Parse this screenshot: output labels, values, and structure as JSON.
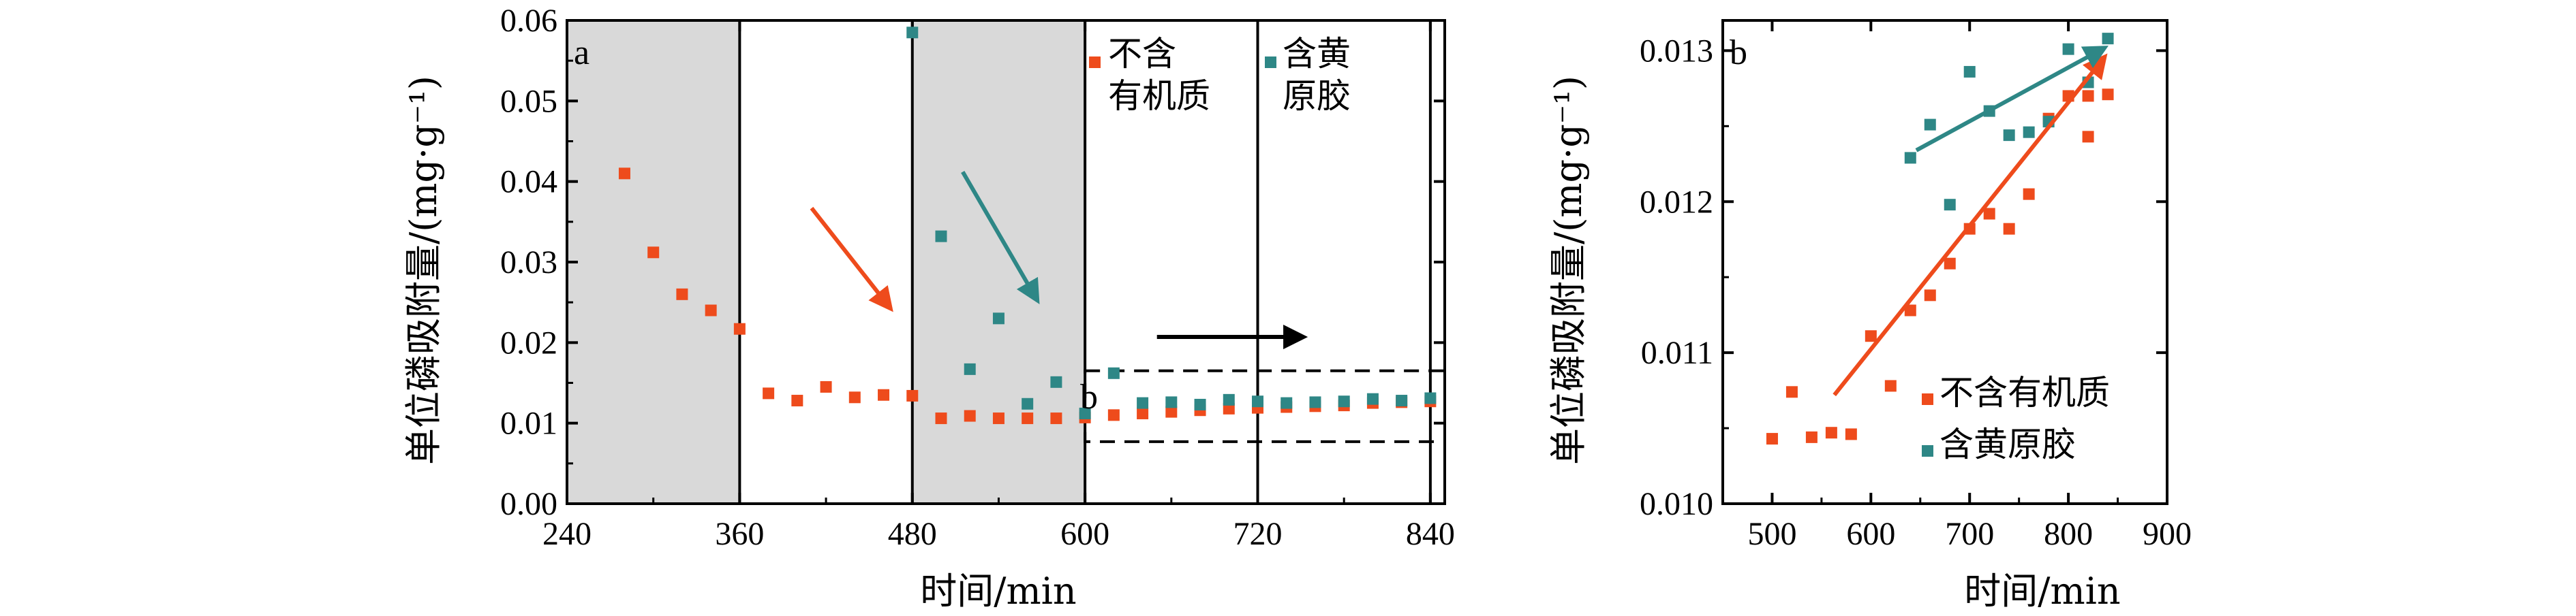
{
  "colors": {
    "orange": "#ee4b1c",
    "teal": "#2e8786",
    "shade": "#d9d9d9",
    "arrow_black": "#000000"
  },
  "chart_data": [
    {
      "panel": "a",
      "type": "scatter",
      "xlabel": "时间/min",
      "ylabel": "单位磷吸附量/(mg·g⁻¹)",
      "xlim": [
        240,
        850
      ],
      "ylim": [
        0,
        0.06
      ],
      "xticks": [
        "240",
        "360",
        "480",
        "600",
        "720",
        "840"
      ],
      "yticks": [
        "0.00",
        "0.01",
        "0.02",
        "0.03",
        "0.04",
        "0.05",
        "0.06"
      ],
      "shaded_intervals": [
        [
          240,
          360
        ],
        [
          480,
          600
        ]
      ],
      "vertical_lines": [
        360,
        480,
        600,
        720,
        840
      ],
      "inset_label": "b",
      "inset_range": {
        "x": [
          600,
          850
        ],
        "y": [
          0.0077,
          0.0165
        ]
      },
      "legend": [
        {
          "name": "不含\n有机质",
          "color": "orange"
        },
        {
          "name": "含黄\n原胶",
          "color": "teal"
        }
      ],
      "series": [
        {
          "name": "不含有机质",
          "color": "orange",
          "points": [
            [
              280,
              0.041
            ],
            [
              300,
              0.0312
            ],
            [
              320,
              0.026
            ],
            [
              340,
              0.024
            ],
            [
              360,
              0.0217
            ],
            [
              380,
              0.0137
            ],
            [
              400,
              0.0128
            ],
            [
              420,
              0.0145
            ],
            [
              440,
              0.0132
            ],
            [
              460,
              0.0135
            ],
            [
              480,
              0.0134
            ],
            [
              500,
              0.0106
            ],
            [
              520,
              0.0109
            ],
            [
              540,
              0.0106
            ],
            [
              560,
              0.0106
            ],
            [
              580,
              0.0106
            ],
            [
              600,
              0.0107
            ],
            [
              620,
              0.011
            ],
            [
              640,
              0.0112
            ],
            [
              660,
              0.0114
            ],
            [
              680,
              0.0116
            ],
            [
              700,
              0.0118
            ],
            [
              720,
              0.0119
            ],
            [
              740,
              0.012
            ],
            [
              760,
              0.0121
            ],
            [
              780,
              0.0122
            ],
            [
              800,
              0.0125
            ],
            [
              820,
              0.0126
            ],
            [
              840,
              0.0127
            ]
          ]
        },
        {
          "name": "含黄原胶",
          "color": "teal",
          "points": [
            [
              480,
              0.0585
            ],
            [
              500,
              0.0332
            ],
            [
              520,
              0.0167
            ],
            [
              540,
              0.023
            ],
            [
              560,
              0.0124
            ],
            [
              580,
              0.0151
            ],
            [
              600,
              0.0112
            ],
            [
              620,
              0.0162
            ],
            [
              640,
              0.0125
            ],
            [
              660,
              0.0126
            ],
            [
              680,
              0.0123
            ],
            [
              700,
              0.0129
            ],
            [
              720,
              0.0127
            ],
            [
              740,
              0.0125
            ],
            [
              760,
              0.0126
            ],
            [
              780,
              0.0127
            ],
            [
              800,
              0.013
            ],
            [
              820,
              0.0128
            ],
            [
              840,
              0.0131
            ]
          ]
        }
      ],
      "arrows": [
        {
          "color": "orange",
          "from": [
            410,
            0.0367
          ],
          "to": [
            465,
            0.0242
          ]
        },
        {
          "color": "teal",
          "from": [
            515,
            0.0412
          ],
          "to": [
            567,
            0.0252
          ]
        },
        {
          "color": "arrow_black",
          "from": [
            650,
            0.0207
          ],
          "to": [
            752,
            0.0207
          ]
        }
      ]
    },
    {
      "panel": "b",
      "type": "scatter",
      "xlabel": "时间/min",
      "ylabel": "单位磷吸附量/(mg·g⁻¹)",
      "xlim": [
        450,
        900
      ],
      "ylim": [
        0.01,
        0.0132
      ],
      "xticks": [
        "500",
        "600",
        "700",
        "800",
        "900"
      ],
      "yticks": [
        "0.010",
        "0.011",
        "0.012",
        "0.013"
      ],
      "legend": [
        {
          "name": "不含有机质",
          "color": "orange"
        },
        {
          "name": "含黄原胶",
          "color": "teal"
        }
      ],
      "series": [
        {
          "name": "不含有机质",
          "color": "orange",
          "points": [
            [
              500,
              0.01043
            ],
            [
              520,
              0.01074
            ],
            [
              540,
              0.01044
            ],
            [
              560,
              0.01047
            ],
            [
              580,
              0.01046
            ],
            [
              600,
              0.01111
            ],
            [
              620,
              0.01078
            ],
            [
              640,
              0.01128
            ],
            [
              660,
              0.01138
            ],
            [
              680,
              0.01159
            ],
            [
              700,
              0.01182
            ],
            [
              720,
              0.01192
            ],
            [
              740,
              0.01182
            ],
            [
              760,
              0.01205
            ],
            [
              780,
              0.01255
            ],
            [
              800,
              0.0127
            ],
            [
              820,
              0.01243
            ],
            [
              820,
              0.0127
            ],
            [
              840,
              0.01271
            ]
          ]
        },
        {
          "name": "含黄原胶",
          "color": "teal",
          "points": [
            [
              640,
              0.01229
            ],
            [
              660,
              0.01251
            ],
            [
              680,
              0.01198
            ],
            [
              700,
              0.01286
            ],
            [
              720,
              0.0126
            ],
            [
              740,
              0.01244
            ],
            [
              760,
              0.01246
            ],
            [
              780,
              0.01253
            ],
            [
              800,
              0.01301
            ],
            [
              820,
              0.01279
            ],
            [
              840,
              0.01308
            ]
          ]
        }
      ],
      "arrows": [
        {
          "color": "orange",
          "from": [
            563,
            0.01072
          ],
          "to": [
            837,
            0.01296
          ]
        },
        {
          "color": "teal",
          "from": [
            646,
            0.01234
          ],
          "to": [
            837,
            0.01302
          ]
        }
      ]
    }
  ]
}
